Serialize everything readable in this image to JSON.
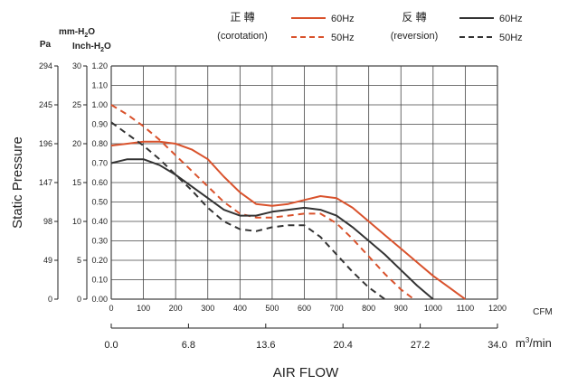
{
  "chart_data": {
    "type": "line",
    "ylabel": "Static Pressure",
    "xlabel": "AIR FLOW",
    "unit_pa": "Pa",
    "unit_mm_main": "mm-H",
    "unit_mm_sub": "2",
    "unit_mm_tail": "O",
    "unit_inch_main": "Inch-H",
    "unit_inch_sub": "2",
    "unit_inch_tail": "O",
    "unit_cfm": "CFM",
    "unit_m3_main": "m",
    "unit_m3_sup": "3",
    "unit_m3_tail": "/min",
    "x_cfm_ticks": [
      "0",
      "100",
      "200",
      "300",
      "400",
      "500",
      "600",
      "700",
      "800",
      "900",
      "1000",
      "1100",
      "1200"
    ],
    "x_m3min_ticks": [
      "0.0",
      "6.8",
      "13.6",
      "20.4",
      "27.2",
      "34.0"
    ],
    "y_inch_ticks": [
      "0.00",
      "0.10",
      "0.20",
      "0.30",
      "0.40",
      "0.50",
      "0.60",
      "0.70",
      "0.80",
      "0.90",
      "1.00",
      "1.10",
      "1.20"
    ],
    "y_mm_ticks": [
      "0",
      "5",
      "10",
      "15",
      "20",
      "25",
      "30"
    ],
    "y_pa_ticks": [
      "0",
      "49",
      "98",
      "147",
      "196",
      "245",
      "294"
    ],
    "xlim": [
      0,
      1200
    ],
    "ylim": [
      0,
      1.2
    ],
    "grid": true,
    "legend": {
      "group1_title": "正 轉",
      "group1_sub": "(corotation)",
      "group2_title": "反 轉",
      "group2_sub": "(reversion)",
      "items": [
        {
          "label": "60Hz",
          "group": "corotation",
          "color": "#d9522c",
          "dash": "solid"
        },
        {
          "label": "50Hz",
          "group": "corotation",
          "color": "#d9522c",
          "dash": "dashed"
        },
        {
          "label": "60Hz",
          "group": "reversion",
          "color": "#333333",
          "dash": "solid"
        },
        {
          "label": "50Hz",
          "group": "reversion",
          "color": "#333333",
          "dash": "dashed"
        }
      ]
    },
    "series": [
      {
        "name": "60Hz",
        "group": "corotation",
        "color": "#d9522c",
        "dash": "solid",
        "x": [
          0,
          50,
          100,
          150,
          200,
          250,
          300,
          350,
          400,
          450,
          500,
          550,
          600,
          650,
          700,
          750,
          800,
          850,
          900,
          950,
          1000,
          1050,
          1100
        ],
        "y": [
          0.79,
          0.8,
          0.81,
          0.81,
          0.8,
          0.77,
          0.72,
          0.63,
          0.55,
          0.49,
          0.48,
          0.49,
          0.51,
          0.53,
          0.52,
          0.47,
          0.4,
          0.33,
          0.26,
          0.19,
          0.12,
          0.06,
          0.0
        ]
      },
      {
        "name": "50Hz",
        "group": "corotation",
        "color": "#d9522c",
        "dash": "dashed",
        "x": [
          0,
          50,
          100,
          150,
          200,
          250,
          300,
          350,
          400,
          450,
          500,
          550,
          600,
          650,
          700,
          750,
          800,
          850,
          900,
          940
        ],
        "y": [
          1.0,
          0.95,
          0.89,
          0.82,
          0.74,
          0.66,
          0.58,
          0.5,
          0.44,
          0.42,
          0.42,
          0.43,
          0.44,
          0.44,
          0.39,
          0.31,
          0.22,
          0.13,
          0.05,
          0.0
        ]
      },
      {
        "name": "60Hz",
        "group": "reversion",
        "color": "#333333",
        "dash": "solid",
        "x": [
          0,
          50,
          100,
          150,
          200,
          250,
          300,
          350,
          400,
          450,
          500,
          550,
          600,
          650,
          700,
          750,
          800,
          850,
          900,
          950,
          1000
        ],
        "y": [
          0.7,
          0.72,
          0.72,
          0.69,
          0.64,
          0.58,
          0.52,
          0.46,
          0.43,
          0.43,
          0.45,
          0.46,
          0.47,
          0.46,
          0.43,
          0.37,
          0.3,
          0.23,
          0.15,
          0.07,
          0.0
        ]
      },
      {
        "name": "50Hz",
        "group": "reversion",
        "color": "#333333",
        "dash": "dashed",
        "x": [
          0,
          50,
          100,
          150,
          200,
          250,
          300,
          350,
          400,
          450,
          500,
          550,
          600,
          650,
          700,
          750,
          800,
          850
        ],
        "y": [
          0.91,
          0.85,
          0.79,
          0.72,
          0.64,
          0.56,
          0.47,
          0.4,
          0.36,
          0.35,
          0.37,
          0.38,
          0.38,
          0.32,
          0.23,
          0.14,
          0.06,
          0.0
        ]
      }
    ]
  }
}
